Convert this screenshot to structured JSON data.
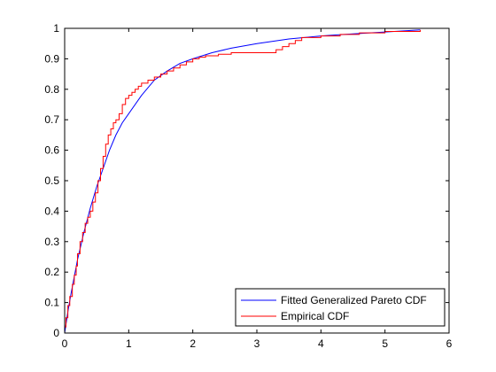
{
  "chart_data": {
    "type": "line",
    "title": "",
    "xlabel": "",
    "ylabel": "",
    "xlim": [
      0,
      6
    ],
    "ylim": [
      0,
      1
    ],
    "xticks": [
      "0",
      "1",
      "2",
      "3",
      "4",
      "5",
      "6"
    ],
    "yticks": [
      "0",
      "0.1",
      "0.2",
      "0.3",
      "0.4",
      "0.5",
      "0.6",
      "0.7",
      "0.8",
      "0.9",
      "1"
    ],
    "grid": false,
    "legend_position": "bottom-right",
    "colors": {
      "fitted": "#0000ff",
      "empirical": "#ff0000",
      "axes": "#000000"
    },
    "series": [
      {
        "name": "Fitted Generalized Pareto CDF",
        "style": "smooth",
        "x": [
          0,
          0.05,
          0.1,
          0.2,
          0.3,
          0.4,
          0.5,
          0.6,
          0.7,
          0.8,
          0.9,
          1.0,
          1.2,
          1.4,
          1.6,
          1.8,
          2.0,
          2.3,
          2.6,
          3.0,
          3.5,
          4.0,
          4.5,
          5.0,
          5.55
        ],
        "values": [
          0,
          0.07,
          0.13,
          0.24,
          0.33,
          0.41,
          0.48,
          0.54,
          0.6,
          0.65,
          0.69,
          0.72,
          0.78,
          0.83,
          0.86,
          0.885,
          0.9,
          0.92,
          0.935,
          0.95,
          0.965,
          0.975,
          0.982,
          0.988,
          0.995
        ]
      },
      {
        "name": "Empirical CDF",
        "style": "step",
        "x": [
          0,
          0.02,
          0.05,
          0.08,
          0.12,
          0.15,
          0.18,
          0.2,
          0.24,
          0.28,
          0.32,
          0.36,
          0.4,
          0.44,
          0.48,
          0.52,
          0.56,
          0.6,
          0.64,
          0.68,
          0.72,
          0.76,
          0.8,
          0.85,
          0.9,
          0.95,
          1.0,
          1.05,
          1.1,
          1.15,
          1.2,
          1.3,
          1.4,
          1.5,
          1.6,
          1.7,
          1.8,
          1.9,
          2.0,
          2.1,
          2.2,
          2.4,
          2.6,
          3.0,
          3.3,
          3.4,
          3.5,
          3.6,
          3.7,
          4.0,
          4.3,
          4.6,
          5.0,
          5.3,
          5.55
        ],
        "values": [
          0.02,
          0.05,
          0.09,
          0.12,
          0.16,
          0.19,
          0.22,
          0.26,
          0.3,
          0.33,
          0.36,
          0.38,
          0.4,
          0.43,
          0.46,
          0.5,
          0.54,
          0.58,
          0.62,
          0.65,
          0.67,
          0.69,
          0.7,
          0.72,
          0.75,
          0.77,
          0.78,
          0.79,
          0.8,
          0.81,
          0.82,
          0.83,
          0.84,
          0.85,
          0.86,
          0.87,
          0.88,
          0.89,
          0.9,
          0.905,
          0.91,
          0.915,
          0.92,
          0.92,
          0.93,
          0.94,
          0.95,
          0.96,
          0.97,
          0.975,
          0.98,
          0.985,
          0.99,
          0.99,
          0.995
        ]
      }
    ]
  }
}
